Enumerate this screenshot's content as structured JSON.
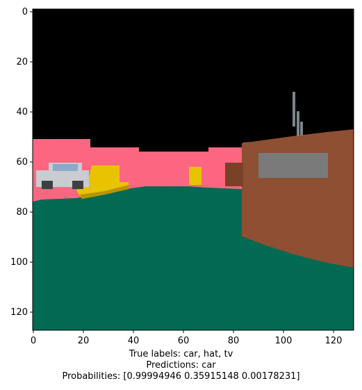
{
  "image_panel": {
    "x_ticks": [
      "0",
      "20",
      "40",
      "60",
      "80",
      "100",
      "120"
    ],
    "y_ticks": [
      "0",
      "20",
      "40",
      "60",
      "80",
      "100",
      "120"
    ],
    "scene_colors": {
      "sky": "#000000",
      "backdrop": "#fd6680",
      "ground": "#026a52",
      "hat": "#e8c400",
      "hat_shadow": "#b89400",
      "tv_body": "#8e4f33",
      "tv_screen": "#7a7a7a",
      "antenna": "#7e848a",
      "car_body": "#c9ccd0",
      "car_window": "#8da8c8",
      "car_wheel": "#404040",
      "barrel": "#7a4128"
    }
  },
  "caption": {
    "true_labels": "True labels: car, hat, tv",
    "predictions": "Predictions: car",
    "probabilities": "Probabilities: [0.99994946 0.35915148 0.00178231]"
  }
}
